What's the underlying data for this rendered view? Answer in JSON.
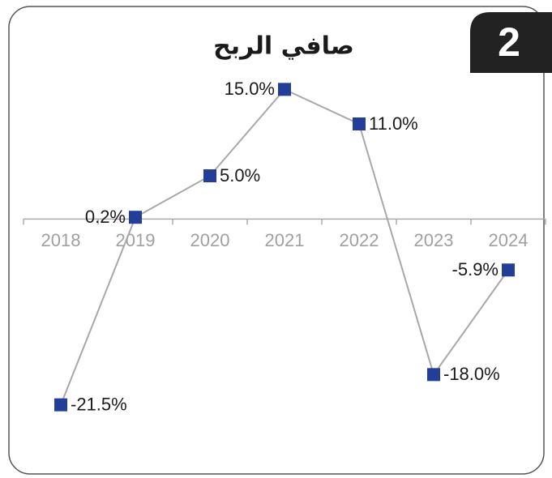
{
  "badge": "2",
  "chart_data": {
    "type": "line",
    "title": "صافي الربح",
    "categories": [
      "2018",
      "2019",
      "2020",
      "2021",
      "2022",
      "2023",
      "2024"
    ],
    "series": [
      {
        "color": "#233e99",
        "values": [
          -21.5,
          0.2,
          5.0,
          15.0,
          11.0,
          -18.0,
          -5.9
        ],
        "value_labels": [
          "-21.5%",
          "0.2%",
          "5.0%",
          "15.0%",
          "11.0%",
          "-18.0%",
          "-5.9%"
        ]
      }
    ],
    "ylim": [
      -25,
      20
    ]
  }
}
